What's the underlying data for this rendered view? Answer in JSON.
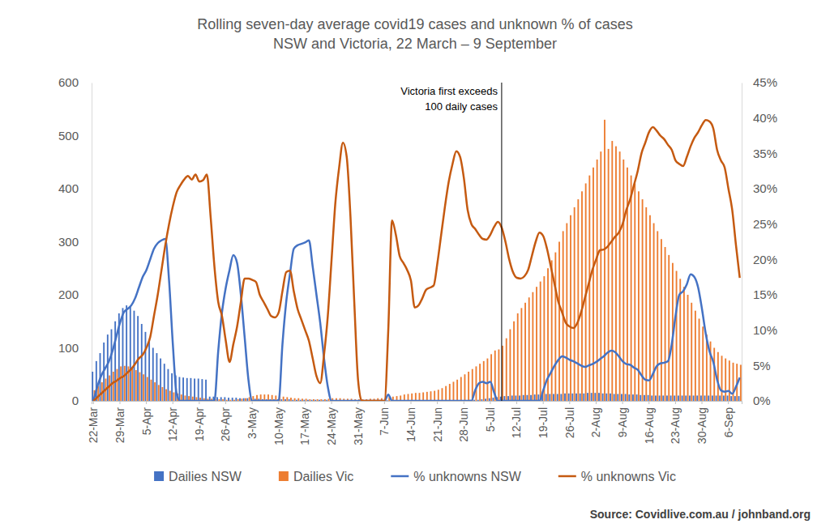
{
  "chart_data": {
    "type": "bar",
    "title": "Rolling seven-day average covid19 cases and unknown % of cases",
    "subtitle": "NSW and Victoria, 22 March – 9 September",
    "source": "Source: Covidlive.com.au / johnband.org",
    "categories": [
      "22-Mar",
      null,
      null,
      null,
      null,
      null,
      null,
      "29-Mar",
      null,
      null,
      null,
      null,
      null,
      null,
      "5-Apr",
      null,
      null,
      null,
      null,
      null,
      null,
      "12-Apr",
      null,
      null,
      null,
      null,
      null,
      null,
      "19-Apr",
      null,
      null,
      null,
      null,
      null,
      null,
      "26-Apr",
      null,
      null,
      null,
      null,
      null,
      null,
      "3-May",
      null,
      null,
      null,
      null,
      null,
      null,
      "10-May",
      null,
      null,
      null,
      null,
      null,
      null,
      "17-May",
      null,
      null,
      null,
      null,
      null,
      null,
      "24-May",
      null,
      null,
      null,
      null,
      null,
      null,
      "31-May",
      null,
      null,
      null,
      null,
      null,
      null,
      "7-Jun",
      null,
      null,
      null,
      null,
      null,
      null,
      "14-Jun",
      null,
      null,
      null,
      null,
      null,
      null,
      "21-Jun",
      null,
      null,
      null,
      null,
      null,
      null,
      "28-Jun",
      null,
      null,
      null,
      null,
      null,
      null,
      "5-Jul",
      null,
      null,
      null,
      null,
      null,
      null,
      "12-Jul",
      null,
      null,
      null,
      null,
      null,
      null,
      "19-Jul",
      null,
      null,
      null,
      null,
      null,
      null,
      "26-Jul",
      null,
      null,
      null,
      null,
      null,
      null,
      "2-Aug",
      null,
      null,
      null,
      null,
      null,
      null,
      "9-Aug",
      null,
      null,
      null,
      null,
      null,
      null,
      "16-Aug",
      null,
      null,
      null,
      null,
      null,
      null,
      "23-Aug",
      null,
      null,
      null,
      null,
      null,
      null,
      "30-Aug",
      null,
      null,
      null,
      null,
      null,
      null,
      "6-Sep",
      null,
      null,
      null
    ],
    "series": [
      {
        "name": "Dailies NSW",
        "type": "bar",
        "axis": "y",
        "color": "#4472c4",
        "values": [
          55,
          75,
          90,
          110,
          125,
          135,
          150,
          165,
          175,
          180,
          178,
          170,
          160,
          145,
          130,
          115,
          100,
          90,
          80,
          70,
          60,
          52,
          48,
          45,
          44,
          43,
          43,
          42,
          42,
          41,
          40,
          8,
          8,
          7,
          7,
          7,
          6,
          6,
          6,
          5,
          5,
          5,
          4,
          4,
          4,
          3,
          3,
          3,
          3,
          3,
          3,
          3,
          3,
          2,
          2,
          2,
          2,
          2,
          2,
          2,
          2,
          2,
          2,
          1,
          1,
          1,
          1,
          1,
          1,
          1,
          1,
          1,
          1,
          1,
          1,
          1,
          1,
          1,
          1,
          1,
          1,
          1,
          1,
          1,
          1,
          1,
          1,
          1,
          1,
          1,
          1,
          1,
          1,
          1,
          1,
          1,
          1,
          1,
          1,
          1,
          2,
          2,
          2,
          3,
          4,
          5,
          6,
          7,
          8,
          9,
          9,
          10,
          10,
          10,
          11,
          11,
          11,
          12,
          12,
          12,
          13,
          13,
          13,
          13,
          13,
          14,
          14,
          14,
          14,
          14,
          14,
          15,
          15,
          15,
          15,
          14,
          14,
          14,
          13,
          13,
          13,
          13,
          12,
          12,
          12,
          11,
          11,
          11,
          10,
          10,
          10,
          10,
          10,
          10,
          10,
          10,
          10,
          10,
          10,
          10,
          10,
          10,
          10,
          10,
          10,
          10,
          10,
          10,
          10,
          9,
          9,
          9
        ]
      },
      {
        "name": "Dailies Vic",
        "type": "bar",
        "axis": "y",
        "color": "#ed7d31",
        "values": [
          20,
          28,
          35,
          42,
          48,
          55,
          60,
          65,
          66,
          65,
          62,
          58,
          54,
          50,
          45,
          40,
          35,
          30,
          26,
          22,
          19,
          16,
          14,
          12,
          10,
          9,
          8,
          7,
          6,
          5,
          4,
          4,
          3,
          3,
          3,
          2,
          2,
          2,
          3,
          4,
          5,
          7,
          9,
          11,
          12,
          12,
          12,
          11,
          10,
          9,
          8,
          7,
          6,
          5,
          5,
          4,
          4,
          3,
          3,
          3,
          3,
          3,
          4,
          5,
          5,
          5,
          4,
          4,
          4,
          3,
          3,
          3,
          3,
          4,
          4,
          5,
          5,
          6,
          7,
          8,
          9,
          10,
          12,
          13,
          14,
          15,
          15,
          16,
          17,
          18,
          19,
          21,
          24,
          28,
          32,
          36,
          40,
          45,
          50,
          55,
          60,
          65,
          70,
          75,
          80,
          88,
          95,
          97,
          104,
          118,
          135,
          150,
          165,
          175,
          185,
          195,
          205,
          215,
          225,
          235,
          250,
          265,
          280,
          300,
          320,
          335,
          350,
          365,
          380,
          395,
          410,
          425,
          440,
          455,
          470,
          530,
          475,
          490,
          480,
          470,
          455,
          440,
          425,
          410,
          395,
          380,
          365,
          350,
          335,
          320,
          305,
          290,
          275,
          260,
          245,
          230,
          215,
          200,
          185,
          170,
          155,
          140,
          125,
          112,
          100,
          92,
          85,
          80,
          76,
          72,
          70,
          68
        ]
      },
      {
        "name": "% unknowns NSW",
        "type": "line",
        "axis": "y2",
        "color": "#4472c4",
        "values": [
          0,
          2,
          3.5,
          4.5,
          5.5,
          7,
          9,
          11,
          12.5,
          13,
          13.5,
          14.5,
          16,
          17.5,
          18.5,
          20,
          21.5,
          22.3,
          22.7,
          22.9,
          17,
          8,
          1,
          0,
          0,
          0,
          0,
          0,
          0,
          0,
          0,
          0,
          0,
          7,
          12.5,
          16,
          18.5,
          20.6,
          19.5,
          15,
          9,
          3,
          0,
          0,
          0,
          0,
          0,
          0,
          0,
          0,
          8,
          14,
          18,
          21.5,
          22,
          22.2,
          22.4,
          22.7,
          19,
          15,
          11,
          6,
          2,
          0,
          0,
          0,
          0,
          0,
          0,
          0,
          0,
          0,
          0,
          0,
          0,
          0,
          0,
          0,
          0.9,
          0,
          0,
          0,
          0,
          0,
          0,
          0,
          0,
          0,
          0,
          0,
          0,
          0,
          0,
          0,
          0,
          0,
          0,
          0,
          0,
          0,
          0,
          1.5,
          2.5,
          2.7,
          2.5,
          2.7,
          1.2,
          0,
          0,
          0,
          0,
          0,
          0,
          0,
          0,
          0,
          0,
          0,
          0,
          1.5,
          3,
          4,
          5,
          5.8,
          6.3,
          6.1,
          5.8,
          5.6,
          5.3,
          5,
          4.8,
          5,
          5.2,
          5.5,
          5.9,
          6.3,
          6.8,
          7.1,
          6.9,
          6.3,
          5.6,
          5.2,
          5.1,
          4.7,
          4.4,
          3.6,
          3,
          2.9,
          3.8,
          4.9,
          5.3,
          5.4,
          5.6,
          8,
          12,
          15,
          15.5,
          16.5,
          17.9,
          17.5,
          16,
          13,
          9.5,
          7,
          5.5,
          3,
          1.5,
          1.3,
          1.4,
          1,
          2,
          3.3
        ]
      },
      {
        "name": "% unknowns Vic",
        "type": "line",
        "axis": "y2",
        "color": "#c55a11",
        "values": [
          0,
          0.5,
          1,
          1.5,
          2,
          2.5,
          2.8,
          3.2,
          3.5,
          4,
          4.5,
          5.2,
          6,
          6.5,
          7.5,
          9,
          12,
          15,
          18.5,
          22,
          25,
          27.5,
          29.5,
          30.5,
          31.3,
          31.8,
          31.3,
          32,
          31,
          31.2,
          32,
          26,
          19,
          14,
          12,
          8.5,
          5.5,
          8,
          10.5,
          14,
          17.3,
          17.3,
          17.1,
          16.8,
          15,
          14,
          13,
          12,
          11.8,
          12.5,
          15.5,
          18.2,
          18.4,
          15.5,
          13,
          11.5,
          10,
          8.5,
          6,
          3.5,
          2.5,
          6.5,
          12,
          20,
          28,
          33,
          36.5,
          34.5,
          26,
          14,
          3,
          0,
          0,
          0,
          0,
          0,
          0,
          0,
          10,
          25.5,
          23.5,
          20.5,
          19.5,
          18.5,
          17,
          13.2,
          13.5,
          14.5,
          15.7,
          16,
          16.3,
          19.5,
          23.5,
          27.5,
          31,
          33.5,
          35.3,
          34.5,
          31.5,
          27,
          25,
          24.3,
          23.5,
          22.9,
          22.8,
          23.5,
          24.6,
          25.3,
          24.5,
          22.5,
          20,
          18.2,
          17.4,
          17.3,
          17.6,
          18.5,
          20.5,
          22.5,
          23.8,
          23.3,
          21.5,
          19,
          16.5,
          14,
          12.5,
          11,
          10.5,
          10.3,
          11,
          12.5,
          14.5,
          16.5,
          18.5,
          20,
          21.3,
          21.4,
          21.8,
          22.5,
          23.2,
          23.8,
          25,
          27,
          28.5,
          30.5,
          32.5,
          35,
          36.5,
          38,
          38.7,
          38.2,
          37.5,
          37,
          36.2,
          35.5,
          34,
          33.5,
          33.2,
          34.5,
          36,
          37.2,
          38,
          39,
          39.7,
          39.5,
          38.5,
          35.5,
          34,
          33,
          30,
          27,
          22,
          17.4
        ]
      }
    ],
    "ylim": [
      0,
      600
    ],
    "yticks": [
      0,
      100,
      200,
      300,
      400,
      500,
      600
    ],
    "y2lim": [
      0,
      45
    ],
    "y2ticks": [
      {
        "value": 0,
        "label": "0%"
      },
      {
        "value": 5,
        "label": "5%"
      },
      {
        "value": 10,
        "label": "10%"
      },
      {
        "value": 15,
        "label": "15%"
      },
      {
        "value": 20,
        "label": "20%"
      },
      {
        "value": 25,
        "label": "25%"
      },
      {
        "value": 30,
        "label": "30%"
      },
      {
        "value": 35,
        "label": "35%"
      },
      {
        "value": 40,
        "label": "40%"
      },
      {
        "value": 45,
        "label": "45%"
      }
    ],
    "annotations": [
      {
        "text": [
          "Victoria first exceeds",
          "100 daily cases"
        ],
        "x": 108
      }
    ],
    "grid": false,
    "legend": "bottom"
  }
}
